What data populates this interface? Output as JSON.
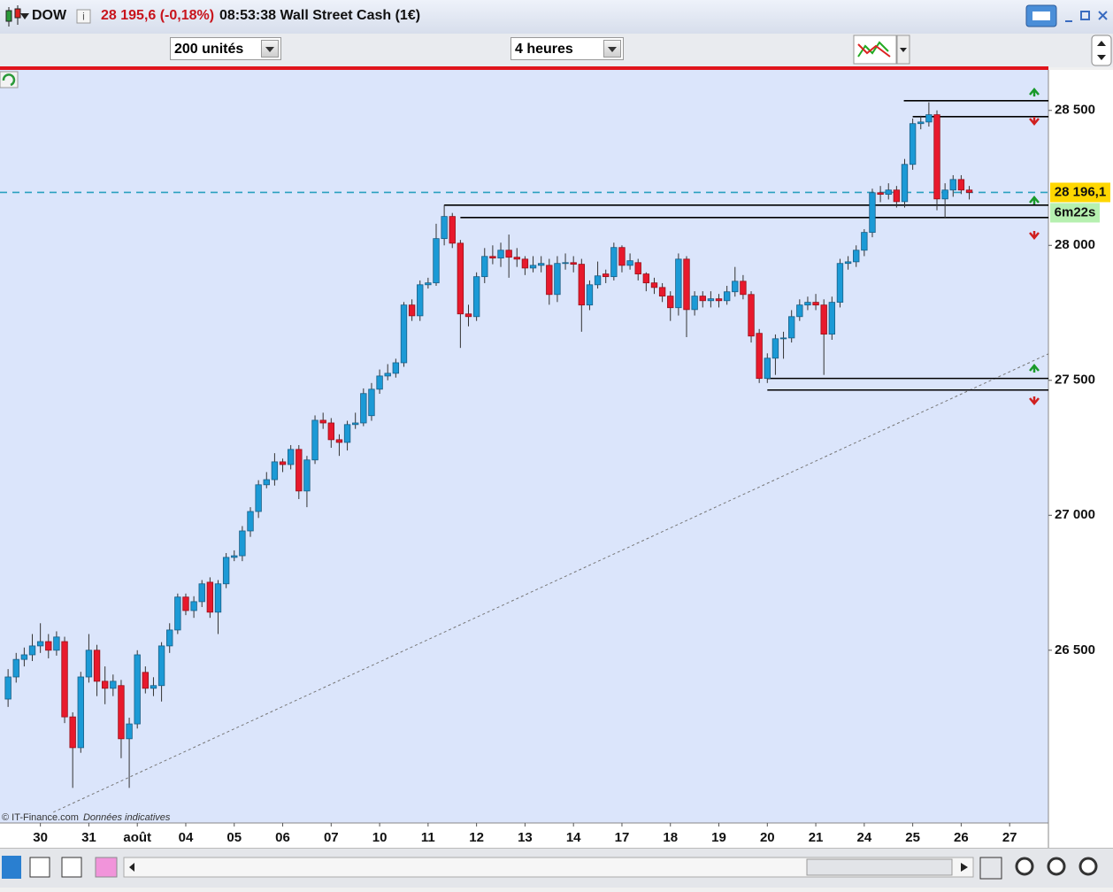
{
  "header": {
    "symbol": "DOW",
    "quote": "28 195,6 (-0,18%)",
    "info": "08:53:38 Wall Street Cash (1€)"
  },
  "toolbar": {
    "units": "200 unités",
    "period": "4 heures"
  },
  "chart_data": {
    "type": "candlestick",
    "footer": "© IT-Finance.com",
    "footer_note": "Données indicatives",
    "timer": "6m22s",
    "up_color": "#1b9ad6",
    "down_color": "#e8192c",
    "background": "#dbe5fb",
    "xlim": [
      -1,
      128.8
    ],
    "xticks": [
      {
        "value": 4,
        "label": "30"
      },
      {
        "value": 10,
        "label": "31"
      },
      {
        "value": 16,
        "label": "août"
      },
      {
        "value": 22,
        "label": "04"
      },
      {
        "value": 28,
        "label": "05"
      },
      {
        "value": 34,
        "label": "06"
      },
      {
        "value": 40,
        "label": "07"
      },
      {
        "value": 46,
        "label": "10"
      },
      {
        "value": 52,
        "label": "11"
      },
      {
        "value": 58,
        "label": "12"
      },
      {
        "value": 64,
        "label": "13"
      },
      {
        "value": 70,
        "label": "14"
      },
      {
        "value": 76,
        "label": "17"
      },
      {
        "value": 82,
        "label": "18"
      },
      {
        "value": 88,
        "label": "19"
      },
      {
        "value": 94,
        "label": "20"
      },
      {
        "value": 100,
        "label": "21"
      },
      {
        "value": 106,
        "label": "24"
      },
      {
        "value": 112,
        "label": "25"
      },
      {
        "value": 118,
        "label": "26"
      },
      {
        "value": 124,
        "label": "27"
      }
    ],
    "ylim": [
      25860,
      28650
    ],
    "yticks": [
      {
        "value": 28500,
        "label": "28 500"
      },
      {
        "value": 28000,
        "label": "28 000"
      },
      {
        "value": 27500,
        "label": "27 500"
      },
      {
        "value": 27000,
        "label": "27 000"
      },
      {
        "value": 26500,
        "label": "26 500"
      }
    ],
    "last_price": {
      "value": 28196.1,
      "label": "28 196,1"
    },
    "levels": [
      {
        "value": 28536,
        "from": 110.9
      },
      {
        "value": 28477,
        "from": 112
      },
      {
        "value": 28149,
        "from": 54
      },
      {
        "value": 28103,
        "from": 56
      },
      {
        "value": 27507,
        "from": 94
      },
      {
        "value": 27464,
        "from": 94
      }
    ],
    "trendline": {
      "from": [
        5.6,
        25900
      ],
      "to": [
        128.8,
        27598
      ]
    },
    "open": [
      26319,
      26401,
      26466,
      26483,
      26516,
      26532,
      26500,
      26532,
      26253,
      26139,
      26401,
      26500,
      26385,
      26359,
      26369,
      26172,
      26227,
      26418,
      26359,
      26369,
      26516,
      26575,
      26697,
      26647,
      26680,
      26752,
      26641,
      26746,
      26844,
      26850,
      26942,
      27014,
      27113,
      27132,
      27198,
      27188,
      27244,
      27090,
      27205,
      27352,
      27342,
      27280,
      27270,
      27336,
      27342,
      27369,
      27467,
      27516,
      27526,
      27565,
      27779,
      27739,
      27854,
      27861,
      28025,
      28107,
      28008,
      27746,
      27736,
      27884,
      27959,
      27953,
      27982,
      27956,
      27949,
      27916,
      27926,
      27926,
      27818,
      27933,
      27936,
      27930,
      27779,
      27854,
      27894,
      27884,
      27992,
      27926,
      27936,
      27894,
      27861,
      27844,
      27812,
      27769,
      27949,
      27762,
      27812,
      27795,
      27802,
      27795,
      27828,
      27867,
      27818,
      27674,
      27507,
      27582,
      27654,
      27657,
      27736,
      27779,
      27789,
      27779,
      27671,
      27789,
      27933,
      27939,
      27982,
      28048,
      28195,
      28189,
      28205,
      28162,
      28300,
      28451,
      28457,
      28484,
      28172,
      28205,
      28244,
      28205
    ],
    "high": [
      26430,
      26490,
      26510,
      26560,
      26600,
      26560,
      26570,
      26550,
      26270,
      26420,
      26560,
      26520,
      26440,
      26410,
      26390,
      26250,
      26500,
      26440,
      26400,
      26530,
      26600,
      26710,
      26710,
      26700,
      26760,
      26770,
      26760,
      26860,
      26870,
      26960,
      27030,
      27130,
      27160,
      27230,
      27210,
      27260,
      27260,
      27220,
      27370,
      27380,
      27360,
      27300,
      27350,
      27380,
      27470,
      27490,
      27540,
      27560,
      27580,
      27790,
      27800,
      27870,
      27880,
      28080,
      28150,
      28120,
      28020,
      27780,
      27900,
      27990,
      28000,
      28010,
      28040,
      27990,
      27960,
      27960,
      27960,
      27950,
      27960,
      27970,
      27960,
      27950,
      27870,
      27940,
      27910,
      28010,
      28000,
      27970,
      27950,
      27900,
      27880,
      27860,
      27830,
      27970,
      27960,
      27830,
      27830,
      27830,
      27820,
      27850,
      27920,
      27890,
      27830,
      27690,
      27600,
      27670,
      27680,
      27760,
      27800,
      27810,
      27820,
      27800,
      27810,
      27950,
      27960,
      28000,
      28060,
      28210,
      28220,
      28230,
      28220,
      28320,
      28470,
      28480,
      28530,
      28500,
      28230,
      28260,
      28260,
      28220
    ],
    "low": [
      26290,
      26380,
      26440,
      26460,
      26490,
      26470,
      26480,
      26230,
      25990,
      26120,
      26380,
      26330,
      26300,
      26330,
      26100,
      25990,
      26210,
      26340,
      26330,
      26310,
      26490,
      26560,
      26630,
      26620,
      26660,
      26620,
      26560,
      26730,
      26830,
      26830,
      26920,
      26990,
      27100,
      27110,
      27160,
      27170,
      27060,
      27030,
      27190,
      27320,
      27250,
      27220,
      27240,
      27320,
      27330,
      27350,
      27450,
      27500,
      27510,
      27550,
      27720,
      27720,
      27840,
      27850,
      28000,
      27990,
      27620,
      27700,
      27720,
      27860,
      27930,
      27920,
      27880,
      27920,
      27890,
      27900,
      27900,
      27780,
      27790,
      27910,
      27900,
      27680,
      27760,
      27840,
      27860,
      27870,
      27900,
      27910,
      27870,
      27830,
      27820,
      27790,
      27720,
      27740,
      27660,
      27740,
      27770,
      27770,
      27770,
      27780,
      27810,
      27800,
      27640,
      27490,
      27490,
      27520,
      27580,
      27640,
      27720,
      27760,
      27760,
      27520,
      27650,
      27770,
      27910,
      27920,
      27960,
      28030,
      28160,
      28170,
      28140,
      28140,
      28280,
      28430,
      28440,
      28130,
      28100,
      28180,
      28190,
      28170
    ],
    "close": [
      26401,
      26466,
      26483,
      26516,
      26532,
      26500,
      26549,
      26253,
      26139,
      26401,
      26500,
      26385,
      26359,
      26385,
      26172,
      26227,
      26483,
      26359,
      26369,
      26516,
      26575,
      26697,
      26647,
      26680,
      26746,
      26641,
      26746,
      26844,
      26850,
      26942,
      27014,
      27113,
      27132,
      27198,
      27188,
      27244,
      27090,
      27205,
      27352,
      27342,
      27280,
      27270,
      27336,
      27342,
      27451,
      27467,
      27516,
      27526,
      27565,
      27779,
      27739,
      27854,
      27861,
      28025,
      28107,
      28008,
      27746,
      27736,
      27884,
      27959,
      27953,
      27982,
      27956,
      27949,
      27916,
      27926,
      27933,
      27818,
      27933,
      27936,
      27930,
      27779,
      27854,
      27887,
      27884,
      27992,
      27926,
      27943,
      27894,
      27861,
      27844,
      27812,
      27769,
      27949,
      27762,
      27812,
      27795,
      27802,
      27795,
      27828,
      27867,
      27818,
      27664,
      27507,
      27582,
      27654,
      27657,
      27736,
      27779,
      27789,
      27779,
      27671,
      27789,
      27933,
      27939,
      27982,
      28048,
      28195,
      28189,
      28205,
      28162,
      28300,
      28451,
      28457,
      28484,
      28172,
      28205,
      28244,
      28205,
      28196.1
    ]
  }
}
